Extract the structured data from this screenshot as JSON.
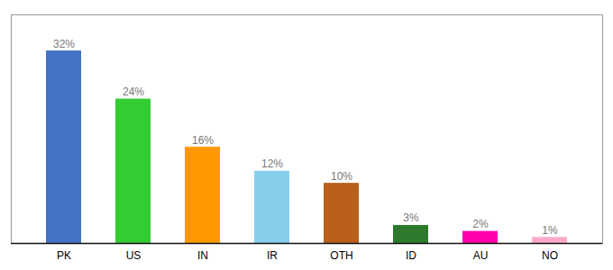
{
  "chart_data": {
    "type": "bar",
    "categories": [
      "PK",
      "US",
      "IN",
      "IR",
      "OTH",
      "ID",
      "AU",
      "NO"
    ],
    "values": [
      32,
      24,
      16,
      12,
      10,
      3,
      2,
      1
    ],
    "value_labels": [
      "32%",
      "24%",
      "16%",
      "12%",
      "10%",
      "3%",
      "2%",
      "1%"
    ],
    "colors": [
      "#4472c4",
      "#33cc33",
      "#ff9900",
      "#87ceeb",
      "#b8601c",
      "#2d7a2d",
      "#ff00aa",
      "#ffaacc"
    ],
    "ylim": [
      0,
      38
    ],
    "grid": false,
    "data_labels": true,
    "tick_labels": "x"
  }
}
